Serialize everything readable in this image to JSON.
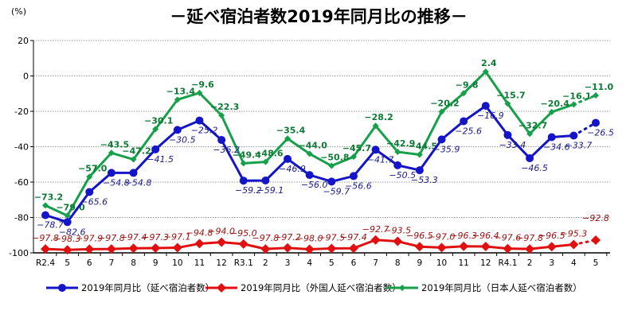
{
  "chart_data": {
    "type": "line",
    "title": "－延べ宿泊者数2019年同月比の推移－",
    "ylabel": "(%)",
    "ylim": [
      -100,
      20
    ],
    "yticks": [
      20,
      0,
      -20,
      -40,
      -60,
      -80,
      -100
    ],
    "grid": true,
    "legend_placement": "bottom",
    "categories": [
      "R2.4",
      "5",
      "6",
      "7",
      "8",
      "9",
      "10",
      "11",
      "12",
      "R3.1",
      "2",
      "3",
      "4",
      "5",
      "6",
      "7",
      "8",
      "9",
      "10",
      "11",
      "12",
      "R4.1",
      "2",
      "3",
      "4",
      "5"
    ],
    "series": [
      {
        "name": "2019年同月比（延べ宿泊者数）",
        "color": "#1414c8",
        "label_color": "#1a1a8c",
        "marker": "circle",
        "values": [
          -78.7,
          -82.6,
          -65.6,
          -54.8,
          -54.8,
          -41.5,
          -30.5,
          -25.2,
          -36.2,
          -59.2,
          -59.1,
          -46.9,
          -56.0,
          -59.7,
          -56.6,
          -41.7,
          -50.5,
          -53.3,
          -35.9,
          -25.6,
          -16.9,
          -33.4,
          -46.5,
          -34.6,
          -33.7,
          -26.5
        ]
      },
      {
        "name": "2019年同月比（外国人延べ宿泊者数）",
        "color": "#e01010",
        "label_color": "#a01010",
        "marker": "diamond",
        "values": [
          -97.8,
          -98.3,
          -97.9,
          -97.8,
          -97.4,
          -97.3,
          -97.1,
          -94.8,
          -94.0,
          -95.0,
          -97.8,
          -97.2,
          -98.0,
          -97.5,
          -97.4,
          -92.7,
          -93.5,
          -96.5,
          -97.0,
          -96.3,
          -96.4,
          -97.6,
          -97.8,
          -96.5,
          -95.3,
          -92.8
        ]
      },
      {
        "name": "2019年同月比（日本人延べ宿泊者数）",
        "color": "#16a04a",
        "label_color": "#0f7a35",
        "marker": "small-diamond",
        "values": [
          -73.2,
          -79.0,
          -57.0,
          -43.5,
          -47.2,
          -30.1,
          -13.4,
          -9.6,
          -22.3,
          -49.4,
          -48.6,
          -35.4,
          -44.0,
          -50.8,
          -45.7,
          -28.2,
          -42.9,
          -44.5,
          -20.2,
          -9.8,
          2.4,
          -15.7,
          -32.7,
          -20.4,
          -16.1,
          -11.0
        ]
      }
    ],
    "last_segment_style": "dotted"
  }
}
